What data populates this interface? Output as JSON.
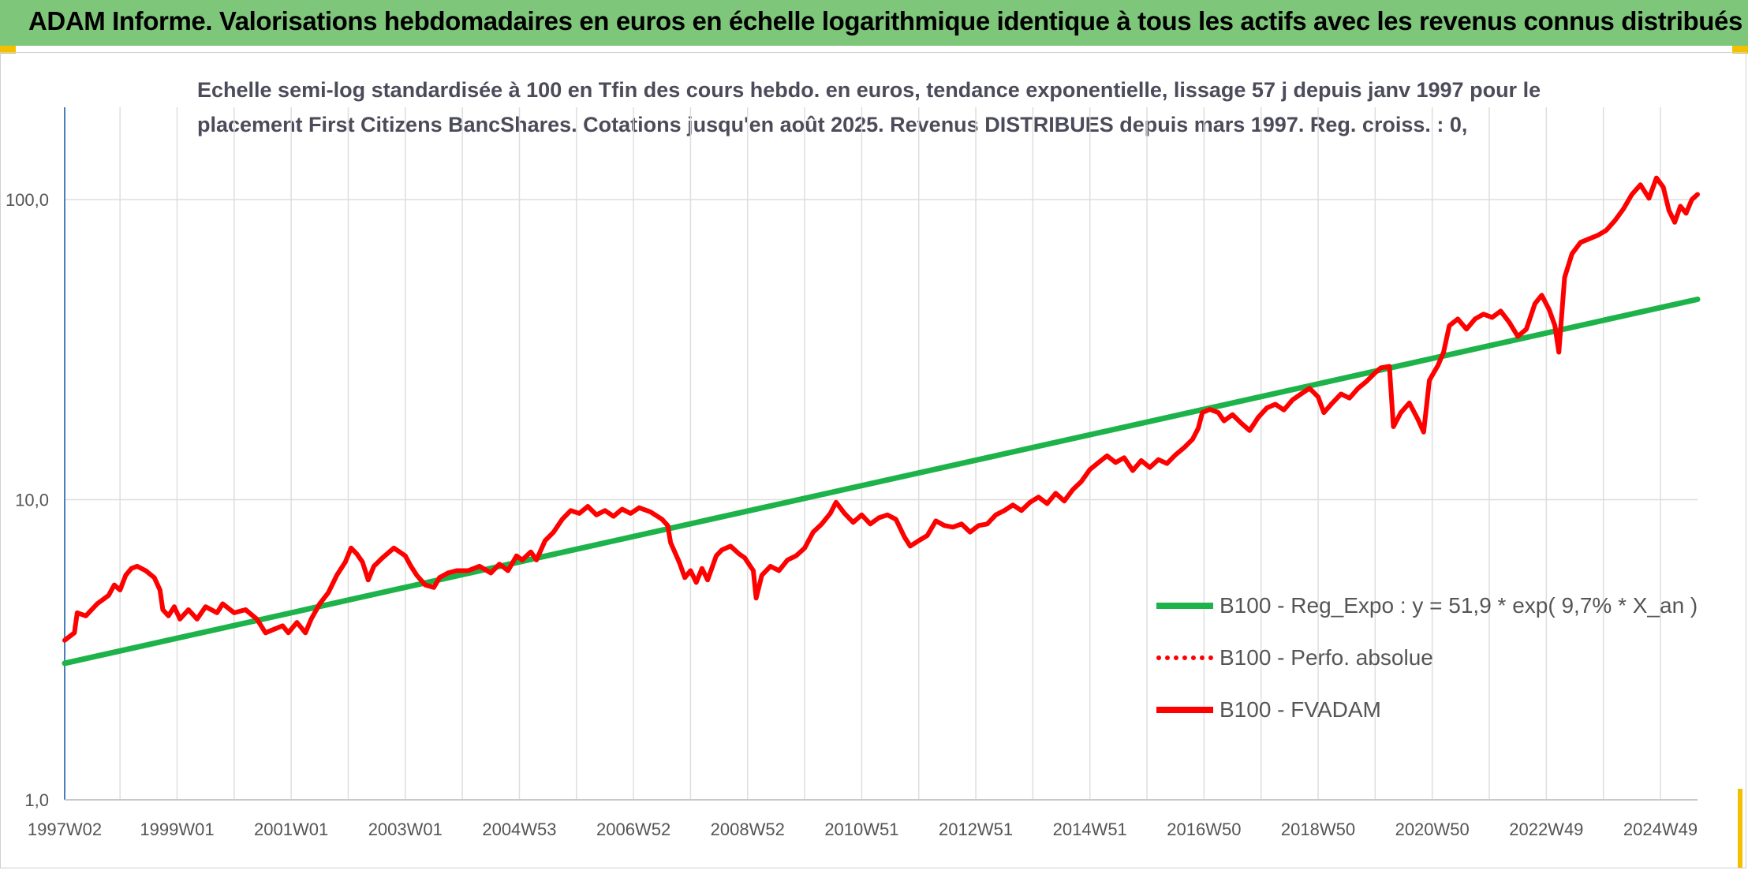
{
  "header": {
    "title": "ADAM Informe. Valorisations hebdomadaires en euros en échelle logarithmique identique à tous les actifs avec les revenus connus distribués"
  },
  "chart_data": {
    "type": "line",
    "title_lines": [
      "Echelle semi-log standardisée à 100 en Tfin des cours hebdo. en euros, tendance exponentielle, lissage 57 j depuis janv 1997 pour le",
      "placement First Citizens BancShares. Cotations jusqu'en août 2025. Revenus DISTRIBUES depuis mars 1997. Reg. croiss. : 0,"
    ],
    "y_scale": "log",
    "ylim": [
      1,
      200
    ],
    "yticks": [
      {
        "value": 1,
        "label": "1,0"
      },
      {
        "value": 10,
        "label": "10,0"
      },
      {
        "value": 100,
        "label": "100,0"
      }
    ],
    "xlim": [
      1997.03,
      2025.65
    ],
    "xticks": [
      {
        "value": 1997.03,
        "label": "1997W02"
      },
      {
        "value": 1999.0,
        "label": "1999W01"
      },
      {
        "value": 2001.0,
        "label": "2001W01"
      },
      {
        "value": 2003.0,
        "label": "2003W01"
      },
      {
        "value": 2005.0,
        "label": "2004W53"
      },
      {
        "value": 2007.0,
        "label": "2006W52"
      },
      {
        "value": 2009.0,
        "label": "2008W52"
      },
      {
        "value": 2011.0,
        "label": "2010W51"
      },
      {
        "value": 2013.0,
        "label": "2012W51"
      },
      {
        "value": 2015.0,
        "label": "2014W51"
      },
      {
        "value": 2017.0,
        "label": "2016W50"
      },
      {
        "value": 2019.0,
        "label": "2018W50"
      },
      {
        "value": 2021.0,
        "label": "2020W50"
      },
      {
        "value": 2023.0,
        "label": "2022W49"
      },
      {
        "value": 2025.0,
        "label": "2024W49"
      }
    ],
    "grid": true,
    "legend_position": "lower-right",
    "series": [
      {
        "name": "B100 - Reg_Expo : y = 51,9 * exp( 9,7% *  X_an )",
        "color": "#1db34a",
        "style": "solid",
        "points": [
          [
            1997.03,
            2.85
          ],
          [
            2025.65,
            46.5
          ]
        ]
      },
      {
        "name": "B100 - Perfo. absolue",
        "color": "#ff0000",
        "style": "dotted",
        "points": []
      },
      {
        "name": "B100 - FVADAM",
        "color": "#ff0000",
        "style": "solid",
        "points": [
          [
            1997.03,
            3.4
          ],
          [
            1997.2,
            3.6
          ],
          [
            1997.25,
            4.2
          ],
          [
            1997.4,
            4.1
          ],
          [
            1997.6,
            4.5
          ],
          [
            1997.8,
            4.8
          ],
          [
            1997.9,
            5.2
          ],
          [
            1998.0,
            5.0
          ],
          [
            1998.1,
            5.6
          ],
          [
            1998.2,
            5.9
          ],
          [
            1998.3,
            6.0
          ],
          [
            1998.45,
            5.8
          ],
          [
            1998.6,
            5.5
          ],
          [
            1998.7,
            5.0
          ],
          [
            1998.75,
            4.3
          ],
          [
            1998.85,
            4.1
          ],
          [
            1998.95,
            4.4
          ],
          [
            1999.05,
            4.0
          ],
          [
            1999.2,
            4.3
          ],
          [
            1999.35,
            4.0
          ],
          [
            1999.5,
            4.4
          ],
          [
            1999.7,
            4.2
          ],
          [
            1999.8,
            4.5
          ],
          [
            2000.0,
            4.2
          ],
          [
            2000.2,
            4.3
          ],
          [
            2000.4,
            4.0
          ],
          [
            2000.55,
            3.6
          ],
          [
            2000.7,
            3.7
          ],
          [
            2000.85,
            3.8
          ],
          [
            2000.95,
            3.6
          ],
          [
            2001.1,
            3.9
          ],
          [
            2001.25,
            3.6
          ],
          [
            2001.35,
            4.0
          ],
          [
            2001.5,
            4.5
          ],
          [
            2001.65,
            4.9
          ],
          [
            2001.8,
            5.6
          ],
          [
            2001.95,
            6.2
          ],
          [
            2002.05,
            6.9
          ],
          [
            2002.15,
            6.6
          ],
          [
            2002.25,
            6.2
          ],
          [
            2002.35,
            5.4
          ],
          [
            2002.45,
            6.0
          ],
          [
            2002.6,
            6.4
          ],
          [
            2002.8,
            6.9
          ],
          [
            2002.9,
            6.7
          ],
          [
            2003.0,
            6.5
          ],
          [
            2003.1,
            6.0
          ],
          [
            2003.2,
            5.6
          ],
          [
            2003.35,
            5.2
          ],
          [
            2003.5,
            5.1
          ],
          [
            2003.6,
            5.5
          ],
          [
            2003.75,
            5.7
          ],
          [
            2003.9,
            5.8
          ],
          [
            2004.1,
            5.8
          ],
          [
            2004.3,
            6.0
          ],
          [
            2004.5,
            5.7
          ],
          [
            2004.65,
            6.1
          ],
          [
            2004.8,
            5.8
          ],
          [
            2004.95,
            6.5
          ],
          [
            2005.05,
            6.3
          ],
          [
            2005.2,
            6.7
          ],
          [
            2005.3,
            6.3
          ],
          [
            2005.45,
            7.3
          ],
          [
            2005.6,
            7.8
          ],
          [
            2005.75,
            8.6
          ],
          [
            2005.9,
            9.2
          ],
          [
            2006.05,
            9.0
          ],
          [
            2006.2,
            9.5
          ],
          [
            2006.35,
            8.9
          ],
          [
            2006.5,
            9.2
          ],
          [
            2006.65,
            8.8
          ],
          [
            2006.8,
            9.3
          ],
          [
            2006.95,
            9.0
          ],
          [
            2007.1,
            9.4
          ],
          [
            2007.3,
            9.1
          ],
          [
            2007.5,
            8.6
          ],
          [
            2007.6,
            8.2
          ],
          [
            2007.65,
            7.2
          ],
          [
            2007.8,
            6.2
          ],
          [
            2007.9,
            5.5
          ],
          [
            2008.0,
            5.8
          ],
          [
            2008.1,
            5.3
          ],
          [
            2008.2,
            5.9
          ],
          [
            2008.3,
            5.4
          ],
          [
            2008.45,
            6.5
          ],
          [
            2008.55,
            6.8
          ],
          [
            2008.7,
            7.0
          ],
          [
            2008.85,
            6.6
          ],
          [
            2008.95,
            6.4
          ],
          [
            2009.1,
            5.8
          ],
          [
            2009.15,
            4.7
          ],
          [
            2009.25,
            5.6
          ],
          [
            2009.4,
            6.0
          ],
          [
            2009.55,
            5.8
          ],
          [
            2009.7,
            6.3
          ],
          [
            2009.85,
            6.5
          ],
          [
            2010.0,
            6.9
          ],
          [
            2010.15,
            7.8
          ],
          [
            2010.3,
            8.3
          ],
          [
            2010.45,
            9.0
          ],
          [
            2010.55,
            9.8
          ],
          [
            2010.7,
            9.0
          ],
          [
            2010.85,
            8.4
          ],
          [
            2011.0,
            8.9
          ],
          [
            2011.15,
            8.3
          ],
          [
            2011.3,
            8.7
          ],
          [
            2011.45,
            8.9
          ],
          [
            2011.6,
            8.6
          ],
          [
            2011.75,
            7.5
          ],
          [
            2011.85,
            7.0
          ],
          [
            2012.0,
            7.3
          ],
          [
            2012.15,
            7.6
          ],
          [
            2012.3,
            8.5
          ],
          [
            2012.45,
            8.2
          ],
          [
            2012.6,
            8.1
          ],
          [
            2012.75,
            8.3
          ],
          [
            2012.9,
            7.8
          ],
          [
            2013.05,
            8.2
          ],
          [
            2013.2,
            8.3
          ],
          [
            2013.35,
            8.9
          ],
          [
            2013.5,
            9.2
          ],
          [
            2013.65,
            9.6
          ],
          [
            2013.8,
            9.2
          ],
          [
            2013.95,
            9.8
          ],
          [
            2014.1,
            10.2
          ],
          [
            2014.25,
            9.7
          ],
          [
            2014.4,
            10.5
          ],
          [
            2014.55,
            9.9
          ],
          [
            2014.7,
            10.8
          ],
          [
            2014.85,
            11.5
          ],
          [
            2015.0,
            12.6
          ],
          [
            2015.15,
            13.3
          ],
          [
            2015.3,
            14.0
          ],
          [
            2015.45,
            13.3
          ],
          [
            2015.6,
            13.8
          ],
          [
            2015.75,
            12.5
          ],
          [
            2015.9,
            13.5
          ],
          [
            2016.05,
            12.8
          ],
          [
            2016.2,
            13.6
          ],
          [
            2016.35,
            13.2
          ],
          [
            2016.5,
            14.1
          ],
          [
            2016.65,
            14.9
          ],
          [
            2016.8,
            15.9
          ],
          [
            2016.9,
            17.3
          ],
          [
            2016.97,
            19.5
          ],
          [
            2017.1,
            20.0
          ],
          [
            2017.25,
            19.5
          ],
          [
            2017.35,
            18.3
          ],
          [
            2017.5,
            19.2
          ],
          [
            2017.65,
            18.0
          ],
          [
            2017.8,
            17.0
          ],
          [
            2017.95,
            18.8
          ],
          [
            2018.1,
            20.2
          ],
          [
            2018.25,
            20.8
          ],
          [
            2018.4,
            19.9
          ],
          [
            2018.55,
            21.5
          ],
          [
            2018.7,
            22.5
          ],
          [
            2018.85,
            23.5
          ],
          [
            2019.0,
            22.0
          ],
          [
            2019.1,
            19.5
          ],
          [
            2019.25,
            21.0
          ],
          [
            2019.4,
            22.5
          ],
          [
            2019.55,
            21.8
          ],
          [
            2019.7,
            23.5
          ],
          [
            2019.85,
            24.8
          ],
          [
            2020.0,
            26.5
          ],
          [
            2020.1,
            27.5
          ],
          [
            2020.25,
            27.8
          ],
          [
            2020.32,
            17.5
          ],
          [
            2020.45,
            19.5
          ],
          [
            2020.6,
            21.0
          ],
          [
            2020.75,
            18.5
          ],
          [
            2020.85,
            16.8
          ],
          [
            2020.95,
            25.0
          ],
          [
            2021.1,
            28.0
          ],
          [
            2021.2,
            31.0
          ],
          [
            2021.3,
            38.0
          ],
          [
            2021.45,
            40.0
          ],
          [
            2021.6,
            37.0
          ],
          [
            2021.75,
            40.0
          ],
          [
            2021.9,
            41.5
          ],
          [
            2022.05,
            40.5
          ],
          [
            2022.2,
            42.5
          ],
          [
            2022.35,
            39.0
          ],
          [
            2022.5,
            35.0
          ],
          [
            2022.65,
            37.0
          ],
          [
            2022.8,
            45.0
          ],
          [
            2022.92,
            48.0
          ],
          [
            2023.05,
            43.0
          ],
          [
            2023.15,
            38.0
          ],
          [
            2023.22,
            31.0
          ],
          [
            2023.32,
            55.0
          ],
          [
            2023.45,
            66.0
          ],
          [
            2023.6,
            72.0
          ],
          [
            2023.75,
            74.0
          ],
          [
            2023.9,
            76.0
          ],
          [
            2024.05,
            79.0
          ],
          [
            2024.2,
            85.0
          ],
          [
            2024.35,
            93.0
          ],
          [
            2024.5,
            104.0
          ],
          [
            2024.65,
            112.0
          ],
          [
            2024.8,
            101.0
          ],
          [
            2024.93,
            118.0
          ],
          [
            2025.05,
            110.0
          ],
          [
            2025.15,
            92.0
          ],
          [
            2025.25,
            84.0
          ],
          [
            2025.35,
            95.0
          ],
          [
            2025.45,
            90.0
          ],
          [
            2025.55,
            100.0
          ],
          [
            2025.65,
            104.0
          ]
        ]
      }
    ]
  }
}
